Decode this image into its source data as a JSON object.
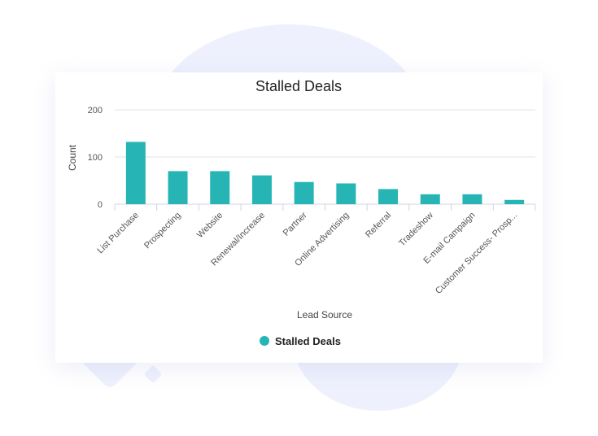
{
  "chart_data": {
    "type": "bar",
    "title": "Stalled Deals",
    "xlabel": "Lead Source",
    "ylabel": "Count",
    "categories": [
      "List Purchase",
      "Prospecting",
      "Website",
      "Renewal/Increase",
      "Partner",
      "Online Advertising",
      "Referral",
      "Tradeshow",
      "E-mail Campaign",
      "Customer Success- Prosp..."
    ],
    "series": [
      {
        "name": "Stalled Deals",
        "values": [
          132,
          70,
          70,
          61,
          47,
          44,
          32,
          21,
          21,
          9
        ]
      }
    ],
    "ylim": [
      0,
      200
    ],
    "yticks": [
      "0",
      "100",
      "200"
    ],
    "grid": true,
    "legend": "bottom-center",
    "color": "#26b5b4"
  }
}
